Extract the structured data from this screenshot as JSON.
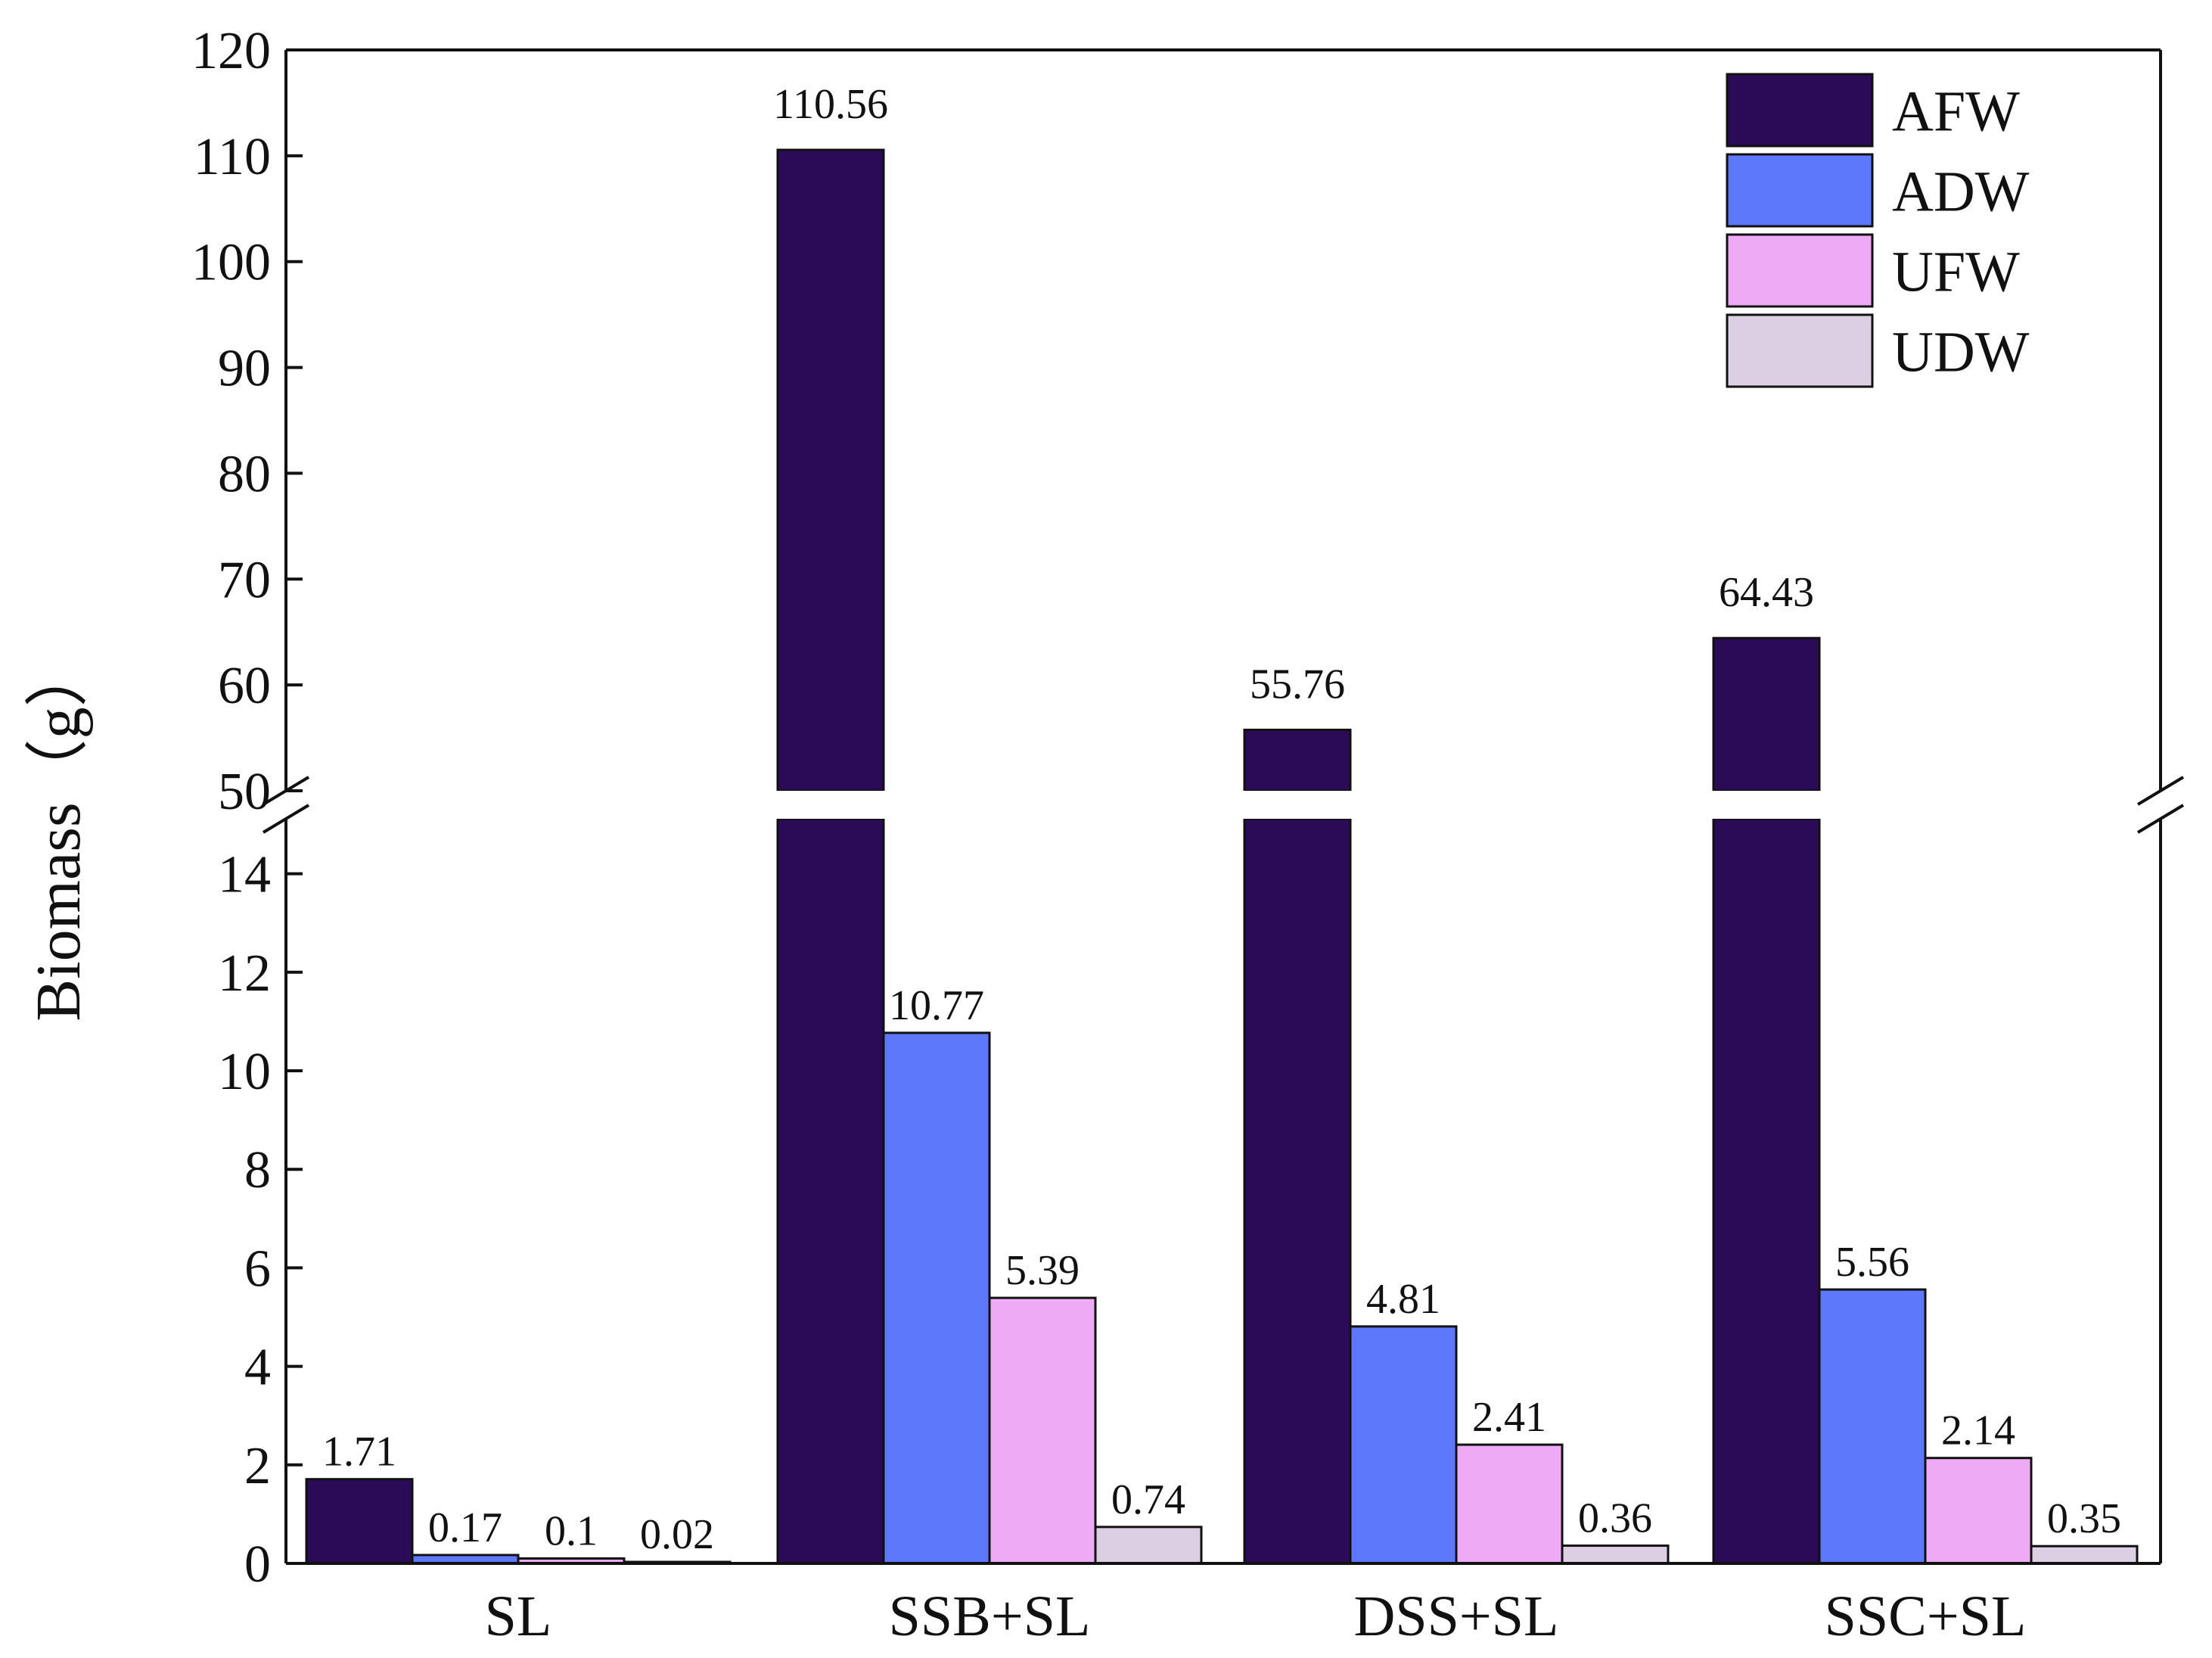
{
  "chart_data": {
    "type": "bar",
    "title": "",
    "xlabel": "",
    "ylabel": "Biomass（g）",
    "categories": [
      "SL",
      "SSB+SL",
      "DSS+SL",
      "SSC+SL"
    ],
    "series": [
      {
        "name": "AFW",
        "color": "#2b0a57",
        "values": [
          1.71,
          110.56,
          55.76,
          64.43
        ],
        "labels": [
          "1.71",
          "110.56",
          "55.76",
          "64.43"
        ]
      },
      {
        "name": "ADW",
        "color": "#5e78fc",
        "values": [
          0.17,
          10.77,
          4.81,
          5.56
        ],
        "labels": [
          "0.17",
          "10.77",
          "4.81",
          "5.56"
        ]
      },
      {
        "name": "UFW",
        "color": "#eeaaf5",
        "values": [
          0.1,
          5.39,
          2.41,
          2.14
        ],
        "labels": [
          "0.1",
          "5.39",
          "2.41",
          "2.14"
        ]
      },
      {
        "name": "UDW",
        "color": "#dccfe3",
        "values": [
          0.02,
          0.74,
          0.36,
          0.35
        ],
        "labels": [
          "0.02",
          "0.74",
          "0.36",
          "0.35"
        ]
      }
    ],
    "y_axis_break": {
      "lower_range": [
        0,
        15
      ],
      "upper_range": [
        50,
        120
      ]
    },
    "lower_ticks": [
      0,
      2,
      4,
      6,
      8,
      10,
      12,
      14
    ],
    "upper_ticks": [
      50,
      60,
      70,
      80,
      90,
      100,
      110,
      120
    ],
    "legend_position": "top-right",
    "grid": false
  }
}
